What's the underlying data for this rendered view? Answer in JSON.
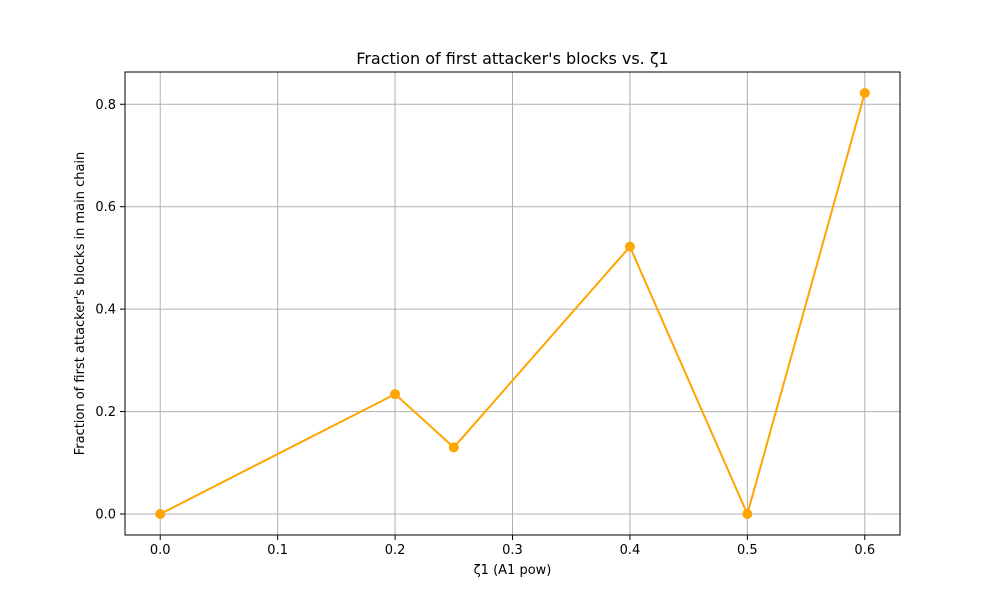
{
  "chart_data": {
    "type": "line",
    "title": "Fraction of first attacker's blocks vs. ζ1",
    "xlabel": "ζ1 (A1 pow)",
    "ylabel": "Fraction of first attacker's blocks in main chain",
    "x": [
      0.0,
      0.2,
      0.25,
      0.4,
      0.5,
      0.6
    ],
    "series": [
      {
        "values": [
          0.0,
          0.234,
          0.13,
          0.522,
          0.0,
          0.822
        ]
      }
    ],
    "xlim": [
      -0.03,
      0.63
    ],
    "ylim": [
      -0.041,
      0.863
    ],
    "xticks": [
      "0.0",
      "0.1",
      "0.2",
      "0.3",
      "0.4",
      "0.5",
      "0.6"
    ],
    "yticks": [
      "0.0",
      "0.2",
      "0.4",
      "0.6",
      "0.8"
    ],
    "grid": true,
    "color": "#ffa500",
    "grid_color": "#b0b0b0"
  }
}
